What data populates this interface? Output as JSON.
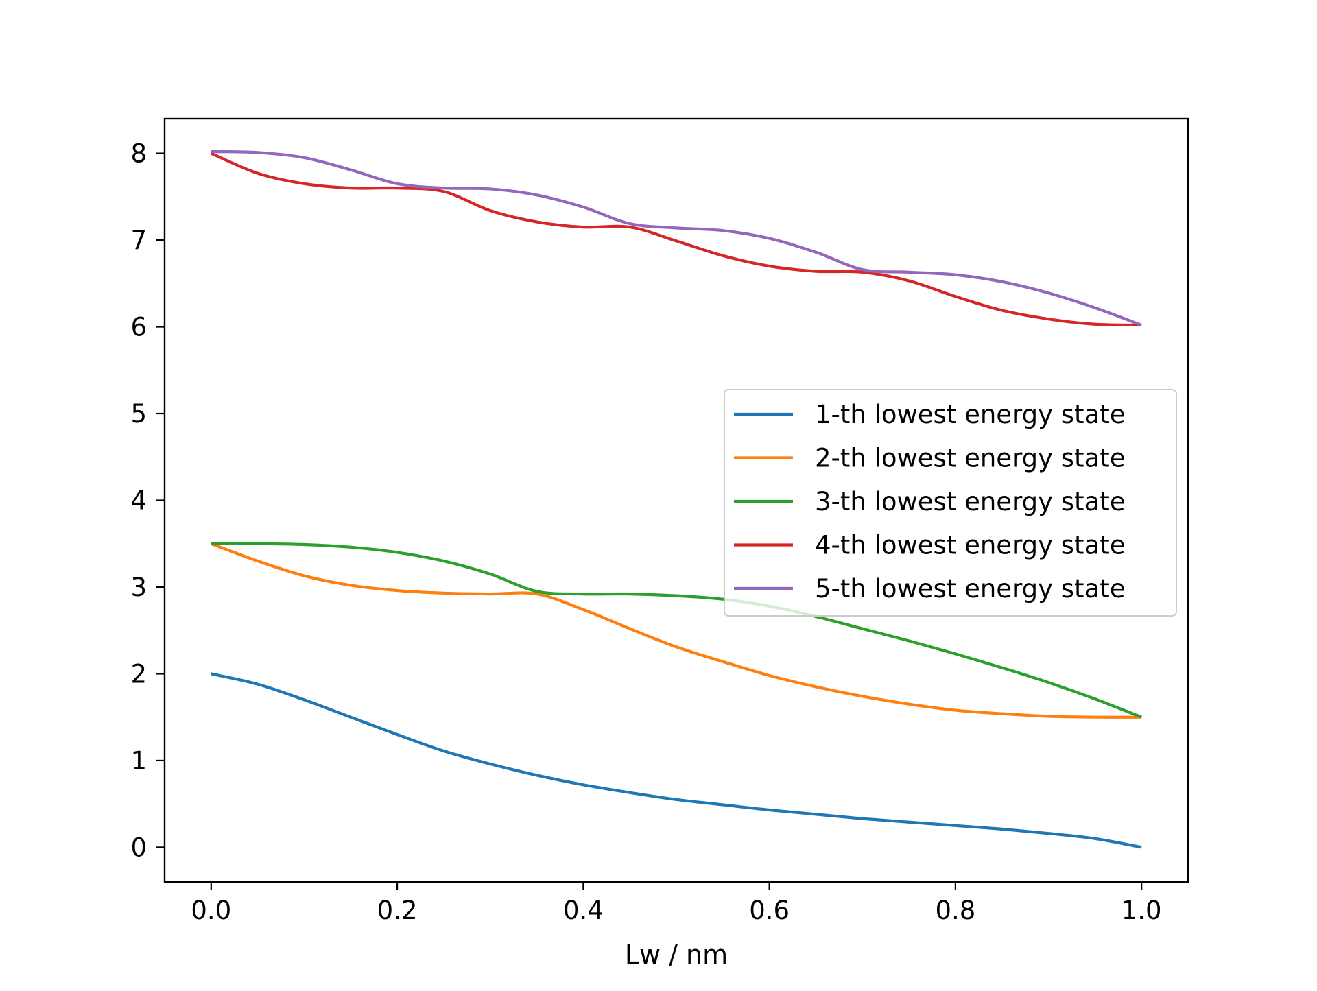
{
  "chart_data": {
    "type": "line",
    "xlabel": "Lw / nm",
    "ylabel": "",
    "xlim": [
      -0.05,
      1.05
    ],
    "ylim": [
      -0.4,
      8.4
    ],
    "xticks": [
      0.0,
      0.2,
      0.4,
      0.6,
      0.8,
      1.0
    ],
    "xtick_labels": [
      "0.0",
      "0.2",
      "0.4",
      "0.6",
      "0.8",
      "1.0"
    ],
    "yticks": [
      0,
      1,
      2,
      3,
      4,
      5,
      6,
      7,
      8
    ],
    "ytick_labels": [
      "0",
      "1",
      "2",
      "3",
      "4",
      "5",
      "6",
      "7",
      "8"
    ],
    "grid": false,
    "legend_position": "center-right",
    "x": [
      0.0,
      0.05,
      0.1,
      0.15,
      0.2,
      0.25,
      0.3,
      0.35,
      0.4,
      0.45,
      0.5,
      0.55,
      0.6,
      0.65,
      0.7,
      0.75,
      0.8,
      0.85,
      0.9,
      0.95,
      1.0
    ],
    "series": [
      {
        "name": "1-th lowest energy state",
        "color": "#1f77b4",
        "values": [
          2.0,
          1.88,
          1.7,
          1.5,
          1.3,
          1.11,
          0.96,
          0.83,
          0.72,
          0.63,
          0.55,
          0.49,
          0.43,
          0.38,
          0.33,
          0.29,
          0.25,
          0.21,
          0.16,
          0.1,
          0.0
        ]
      },
      {
        "name": "2-th lowest energy state",
        "color": "#ff7f0e",
        "values": [
          3.5,
          3.3,
          3.13,
          3.02,
          2.96,
          2.93,
          2.92,
          2.92,
          2.74,
          2.52,
          2.31,
          2.14,
          1.98,
          1.85,
          1.74,
          1.65,
          1.58,
          1.54,
          1.51,
          1.5,
          1.5
        ]
      },
      {
        "name": "3-th lowest energy state",
        "color": "#2ca02c",
        "values": [
          3.5,
          3.5,
          3.49,
          3.46,
          3.4,
          3.3,
          3.15,
          2.95,
          2.92,
          2.92,
          2.9,
          2.86,
          2.78,
          2.66,
          2.52,
          2.38,
          2.23,
          2.07,
          1.9,
          1.71,
          1.5
        ]
      },
      {
        "name": "4-th lowest energy state",
        "color": "#d62728",
        "values": [
          8.0,
          7.77,
          7.65,
          7.6,
          7.6,
          7.56,
          7.34,
          7.21,
          7.15,
          7.15,
          6.99,
          6.82,
          6.7,
          6.64,
          6.63,
          6.53,
          6.35,
          6.19,
          6.09,
          6.03,
          6.02
        ]
      },
      {
        "name": "5-th lowest energy state",
        "color": "#9467bd",
        "values": [
          8.02,
          8.01,
          7.95,
          7.81,
          7.65,
          7.6,
          7.59,
          7.52,
          7.38,
          7.19,
          7.14,
          7.11,
          7.02,
          6.86,
          6.66,
          6.63,
          6.6,
          6.52,
          6.39,
          6.22,
          6.02
        ]
      }
    ]
  }
}
